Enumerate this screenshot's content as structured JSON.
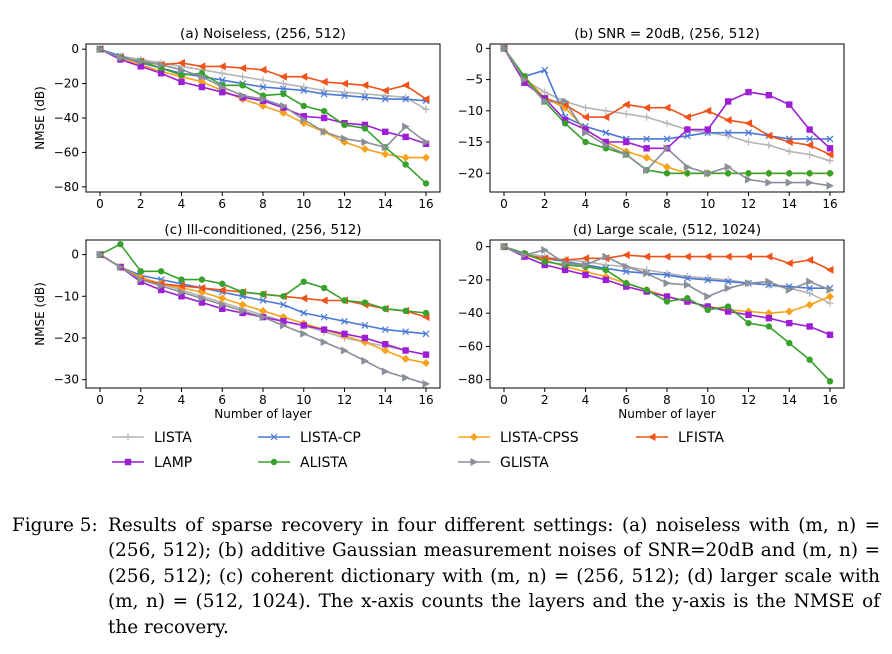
{
  "colors": {
    "LISTA": "#b5b5b5",
    "LISTA-CP": "#4a78d6",
    "LISTA-CPSS": "#f7a21a",
    "LFISTA": "#f0521a",
    "LAMP": "#9d1ed6",
    "ALISTA": "#38a12c",
    "GLISTA": "#8a8f99"
  },
  "legend": {
    "items": [
      "LISTA",
      "LISTA-CP",
      "LISTA-CPSS",
      "LFISTA",
      "LAMP",
      "ALISTA",
      "GLISTA"
    ],
    "markers": {
      "LISTA": "plus",
      "LISTA-CP": "x",
      "LISTA-CPSS": "diamond",
      "LFISTA": "tri-left",
      "LAMP": "square",
      "ALISTA": "circle",
      "GLISTA": "tri-right"
    },
    "placement": "below the panels, four columns"
  },
  "chart_data": [
    {
      "type": "line",
      "title": "(a) Noiseless, (256, 512)",
      "xlabel": "",
      "ylabel": "NMSE (dB)",
      "xlim": [
        0,
        16
      ],
      "ylim": [
        -83,
        3
      ],
      "xticks": [
        0,
        2,
        4,
        6,
        8,
        10,
        12,
        14,
        16
      ],
      "yticks": [
        0,
        -20,
        -40,
        -60,
        -80
      ],
      "grid": false,
      "x": [
        0,
        1,
        2,
        3,
        4,
        5,
        6,
        7,
        8,
        9,
        10,
        11,
        12,
        13,
        14,
        15,
        16
      ],
      "series": [
        {
          "name": "LISTA",
          "values": [
            0,
            -4,
            -6,
            -8,
            -10,
            -12,
            -14,
            -16,
            -18,
            -20,
            -22,
            -24,
            -25,
            -26,
            -27,
            -28,
            -35
          ]
        },
        {
          "name": "LISTA-CP",
          "values": [
            0,
            -4,
            -8,
            -11,
            -14,
            -16,
            -18,
            -20,
            -22,
            -23,
            -24,
            -26,
            -27,
            -28,
            -29,
            -29,
            -30
          ]
        },
        {
          "name": "LISTA-CPSS",
          "values": [
            0,
            -5,
            -9,
            -13,
            -16,
            -19,
            -24,
            -29,
            -33,
            -37,
            -43,
            -48,
            -54,
            -58,
            -61,
            -63,
            -63
          ]
        },
        {
          "name": "LFISTA",
          "values": [
            0,
            -5,
            -7,
            -9,
            -8,
            -10,
            -10,
            -11,
            -12,
            -16,
            -16,
            -19,
            -20,
            -21,
            -24,
            -21,
            -29
          ]
        },
        {
          "name": "LAMP",
          "values": [
            0,
            -6,
            -10,
            -14,
            -19,
            -22,
            -25,
            -28,
            -30,
            -34,
            -39,
            -40,
            -43,
            -44,
            -48,
            -51,
            -55
          ]
        },
        {
          "name": "ALISTA",
          "values": [
            0,
            -5,
            -7,
            -11,
            -15,
            -14,
            -21,
            -21,
            -27,
            -26,
            -33,
            -36,
            -44,
            -46,
            -57,
            -67,
            -78
          ]
        },
        {
          "name": "GLISTA",
          "values": [
            0,
            -5,
            -7,
            -9,
            -12,
            -16,
            -22,
            -27,
            -29,
            -33,
            -41,
            -48,
            -52,
            -54,
            -57,
            -45,
            -54
          ]
        }
      ]
    },
    {
      "type": "line",
      "title": "(b) SNR = 20dB, (256, 512)",
      "xlabel": "",
      "ylabel": "",
      "xlim": [
        0,
        16
      ],
      "ylim": [
        -23,
        0.7
      ],
      "xticks": [
        0,
        2,
        4,
        6,
        8,
        10,
        12,
        14,
        16
      ],
      "yticks": [
        0,
        -5,
        -10,
        -15,
        -20
      ],
      "grid": false,
      "x": [
        0,
        1,
        2,
        3,
        4,
        5,
        6,
        7,
        8,
        9,
        10,
        11,
        12,
        13,
        14,
        15,
        16
      ],
      "series": [
        {
          "name": "LISTA",
          "values": [
            0,
            -5,
            -7,
            -8.5,
            -9.5,
            -10,
            -10.5,
            -11,
            -12,
            -13,
            -13.5,
            -14,
            -15,
            -15.5,
            -16.5,
            -17,
            -18
          ]
        },
        {
          "name": "LISTA-CP",
          "values": [
            0,
            -4.5,
            -3.5,
            -11,
            -12.5,
            -13.5,
            -14.5,
            -14.5,
            -14.5,
            -14,
            -13.5,
            -13.5,
            -13.5,
            -14,
            -14.5,
            -14.5,
            -14.5
          ]
        },
        {
          "name": "LISTA-CPSS",
          "values": [
            0,
            -4.5,
            -8,
            -9.5,
            -13,
            -15,
            -16.5,
            -17.5,
            -19,
            -20,
            -20,
            -20,
            -20,
            -20,
            -20,
            -20,
            -20
          ]
        },
        {
          "name": "LFISTA",
          "values": [
            0,
            -5,
            -8,
            -9,
            -11,
            -11,
            -9,
            -9.5,
            -9.5,
            -11,
            -10,
            -11.5,
            -12,
            -14,
            -15,
            -15.5,
            -17
          ]
        },
        {
          "name": "LAMP",
          "values": [
            0,
            -5.5,
            -8,
            -11.5,
            -13,
            -15,
            -15,
            -16,
            -16,
            -13,
            -13,
            -8.5,
            -7,
            -7.5,
            -9,
            -13,
            -16
          ]
        },
        {
          "name": "ALISTA",
          "values": [
            0,
            -4.5,
            -8.5,
            -12,
            -15,
            -16,
            -17,
            -19.5,
            -20,
            -20,
            -20,
            -20,
            -20,
            -20,
            -20,
            -20,
            -20
          ]
        },
        {
          "name": "GLISTA",
          "values": [
            0,
            -5,
            -8.5,
            -8.5,
            -13.5,
            -15.5,
            -17,
            -19.5,
            -16,
            -19,
            -20,
            -19,
            -21,
            -21.5,
            -21.5,
            -21.5,
            -22
          ]
        }
      ]
    },
    {
      "type": "line",
      "title": "(c) Ill-conditioned, (256, 512)",
      "xlabel": "Number of layer",
      "ylabel": "NMSE (dB)",
      "xlim": [
        0,
        16
      ],
      "ylim": [
        -32,
        3.5
      ],
      "xticks": [
        0,
        2,
        4,
        6,
        8,
        10,
        12,
        14,
        16
      ],
      "yticks": [
        0,
        -10,
        -20,
        -30
      ],
      "grid": false,
      "x": [
        0,
        1,
        2,
        3,
        4,
        5,
        6,
        7,
        8,
        9,
        10,
        11,
        12,
        13,
        14,
        15,
        16
      ],
      "series": [
        {
          "name": "LISTA",
          "values": [
            0,
            -3,
            -5.5,
            -7,
            -8.5,
            -10,
            -11.5,
            -13,
            -14.5,
            -16,
            -17,
            -18.5,
            -20,
            -21,
            -22,
            -23,
            -24
          ]
        },
        {
          "name": "LISTA-CP",
          "values": [
            0,
            -3,
            -5,
            -6,
            -7,
            -8,
            -9,
            -10,
            -11,
            -12,
            -14,
            -15,
            -16,
            -17,
            -18,
            -18.5,
            -19
          ]
        },
        {
          "name": "LISTA-CPSS",
          "values": [
            0,
            -3,
            -5.5,
            -7,
            -8,
            -9,
            -10.5,
            -12,
            -13.5,
            -15,
            -16.5,
            -18,
            -19.5,
            -21,
            -23,
            -25,
            -26
          ]
        },
        {
          "name": "LFISTA",
          "values": [
            0,
            -3,
            -6,
            -7,
            -7.5,
            -8,
            -8.5,
            -9,
            -9.5,
            -10,
            -10.5,
            -11,
            -11,
            -12,
            -13,
            -13.5,
            -15
          ]
        },
        {
          "name": "LAMP",
          "values": [
            0,
            -3,
            -6.5,
            -8.5,
            -10,
            -11.5,
            -13,
            -14,
            -15,
            -16,
            -17,
            -18,
            -19,
            -20,
            -21.5,
            -23,
            -24
          ]
        },
        {
          "name": "ALISTA",
          "values": [
            0,
            2.5,
            -4,
            -4,
            -6,
            -6,
            -7,
            -9,
            -9.5,
            -10,
            -6.5,
            -8,
            -11,
            -11.5,
            -13,
            -13.5,
            -14
          ]
        },
        {
          "name": "GLISTA",
          "values": [
            0,
            -3,
            -6,
            -7.5,
            -9,
            -10.5,
            -12,
            -13.5,
            -15,
            -17,
            -19,
            -21,
            -23,
            -25.5,
            -28,
            -29.5,
            -31
          ]
        }
      ]
    },
    {
      "type": "line",
      "title": "(d) Large scale, (512, 1024)",
      "xlabel": "Number of layer",
      "ylabel": "",
      "xlim": [
        0,
        16
      ],
      "ylim": [
        -85,
        4
      ],
      "xticks": [
        0,
        2,
        4,
        6,
        8,
        10,
        12,
        14,
        16
      ],
      "yticks": [
        0,
        -20,
        -40,
        -60,
        -80
      ],
      "grid": false,
      "x": [
        0,
        1,
        2,
        3,
        4,
        5,
        6,
        7,
        8,
        9,
        10,
        11,
        12,
        13,
        14,
        15,
        16
      ],
      "series": [
        {
          "name": "LISTA",
          "values": [
            0,
            -4,
            -6,
            -8,
            -9,
            -11,
            -12,
            -14,
            -16,
            -18,
            -19,
            -20,
            -22,
            -23,
            -25,
            -28,
            -34
          ]
        },
        {
          "name": "LISTA-CP",
          "values": [
            0,
            -5,
            -7,
            -9,
            -11,
            -13,
            -15,
            -16,
            -17,
            -19,
            -20,
            -21,
            -22,
            -23,
            -24,
            -25,
            -25
          ]
        },
        {
          "name": "LISTA-CPSS",
          "values": [
            0,
            -5,
            -8,
            -12,
            -15,
            -18,
            -22,
            -26,
            -30,
            -33,
            -36,
            -38,
            -39,
            -40,
            -39,
            -35,
            -30
          ]
        },
        {
          "name": "LFISTA",
          "values": [
            0,
            -5,
            -7,
            -8,
            -7,
            -7,
            -5,
            -6,
            -6,
            -6,
            -6,
            -6,
            -6,
            -6,
            -10,
            -8,
            -14
          ]
        },
        {
          "name": "LAMP",
          "values": [
            0,
            -6,
            -11,
            -14,
            -17,
            -20,
            -24,
            -27,
            -30,
            -33,
            -36,
            -39,
            -41,
            -43,
            -46,
            -48,
            -53
          ]
        },
        {
          "name": "ALISTA",
          "values": [
            0,
            -4,
            -9,
            -11,
            -12,
            -14,
            -22,
            -26,
            -33,
            -31,
            -38,
            -36,
            -46,
            -48,
            -58,
            -68,
            -81
          ]
        },
        {
          "name": "GLISTA",
          "values": [
            0,
            -5,
            -2,
            -10,
            -11,
            -6,
            -12,
            -16,
            -22,
            -23,
            -30,
            -25,
            -22,
            -21,
            -26,
            -21,
            -26
          ]
        }
      ]
    }
  ],
  "caption": {
    "label": "Figure 5:",
    "text": "Results of sparse recovery in four different settings: (a) noiseless with (m, n) = (256, 512); (b) additive Gaussian measurement noises of SNR=20dB and (m, n) = (256, 512); (c) coherent dictionary with (m, n) = (256, 512); (d) larger scale with (m, n) = (512, 1024). The x-axis counts the layers and the y-axis is the NMSE of the recovery."
  }
}
